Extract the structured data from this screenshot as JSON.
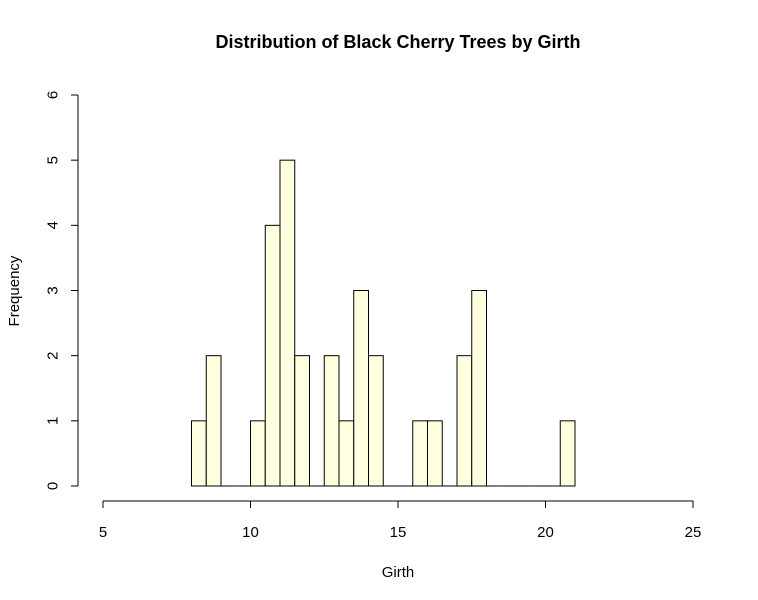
{
  "chart_data": {
    "type": "bar",
    "title": "Distribution of Black Cherry Trees by Girth",
    "xlabel": "Girth",
    "ylabel": "Frequency",
    "xlim": [
      5,
      25
    ],
    "ylim": [
      0,
      6
    ],
    "x_ticks": [
      5,
      10,
      15,
      20,
      25
    ],
    "y_ticks": [
      0,
      1,
      2,
      3,
      4,
      5,
      6
    ],
    "bin_width": 0.5,
    "grid": false,
    "bar_fill": "#FFFFE0",
    "bar_stroke": "#000000",
    "bins": [
      {
        "start": 8.0,
        "end": 8.5,
        "count": 1
      },
      {
        "start": 8.5,
        "end": 9.0,
        "count": 2
      },
      {
        "start": 9.0,
        "end": 9.5,
        "count": 0
      },
      {
        "start": 9.5,
        "end": 10.0,
        "count": 0
      },
      {
        "start": 10.0,
        "end": 10.5,
        "count": 1
      },
      {
        "start": 10.5,
        "end": 11.0,
        "count": 4
      },
      {
        "start": 11.0,
        "end": 11.5,
        "count": 5
      },
      {
        "start": 11.5,
        "end": 12.0,
        "count": 2
      },
      {
        "start": 12.0,
        "end": 12.5,
        "count": 0
      },
      {
        "start": 12.5,
        "end": 13.0,
        "count": 2
      },
      {
        "start": 13.0,
        "end": 13.5,
        "count": 1
      },
      {
        "start": 13.5,
        "end": 14.0,
        "count": 3
      },
      {
        "start": 14.0,
        "end": 14.5,
        "count": 2
      },
      {
        "start": 14.5,
        "end": 15.0,
        "count": 0
      },
      {
        "start": 15.0,
        "end": 15.5,
        "count": 0
      },
      {
        "start": 15.5,
        "end": 16.0,
        "count": 1
      },
      {
        "start": 16.0,
        "end": 16.5,
        "count": 1
      },
      {
        "start": 16.5,
        "end": 17.0,
        "count": 0
      },
      {
        "start": 17.0,
        "end": 17.5,
        "count": 2
      },
      {
        "start": 17.5,
        "end": 18.0,
        "count": 3
      },
      {
        "start": 18.0,
        "end": 18.5,
        "count": 0
      },
      {
        "start": 18.5,
        "end": 19.0,
        "count": 0
      },
      {
        "start": 19.0,
        "end": 19.5,
        "count": 0
      },
      {
        "start": 19.5,
        "end": 20.0,
        "count": 0
      },
      {
        "start": 20.0,
        "end": 20.5,
        "count": 0
      },
      {
        "start": 20.5,
        "end": 21.0,
        "count": 1
      }
    ]
  }
}
